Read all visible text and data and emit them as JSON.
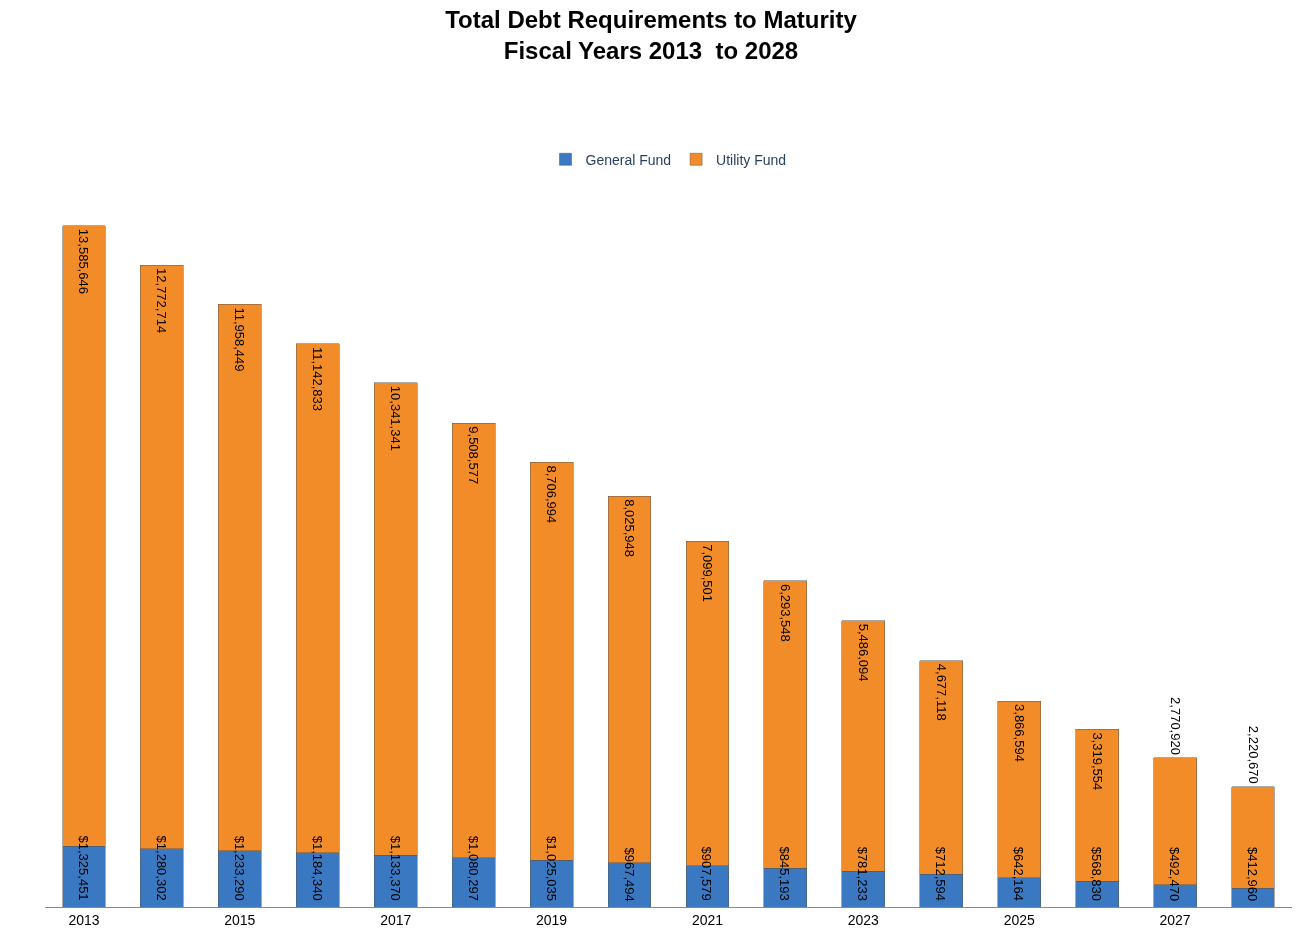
{
  "chart_data": {
    "type": "bar",
    "stacked": true,
    "title": "Total Debt Requirements to Maturity\nFiscal Years 2013  to 2028",
    "categories": [
      "2013",
      null,
      "2015",
      null,
      "2017",
      null,
      "2019",
      null,
      "2021",
      null,
      "2023",
      null,
      "2025",
      null,
      "2027",
      null
    ],
    "series": [
      {
        "name": "General Fund",
        "color": "#3a78c2",
        "values": [
          1325451,
          1280302,
          1233290,
          1184340,
          1133370,
          1080297,
          1025035,
          967494,
          907579,
          845193,
          781233,
          712594,
          642164,
          568830,
          492470,
          412960
        ],
        "value_labels": [
          "$1,325,451",
          "$1,280,302",
          "$1,233,290",
          "$1,184,340",
          "$1,133,370",
          "$1,080,297",
          "$1,025,035",
          "$967,494",
          "$907,579",
          "$845,193",
          "$781,233",
          "$712,594",
          "$642,164",
          "$568,830",
          "$492,470",
          "$412,960"
        ]
      },
      {
        "name": "Utility Fund",
        "color": "#f28c28",
        "values": [
          13585646,
          12772714,
          11958449,
          11142833,
          10341341,
          9508577,
          8706994,
          8025948,
          7099501,
          6293548,
          5486094,
          4677118,
          3866594,
          3319554,
          2770920,
          2220670
        ],
        "value_labels": [
          "13,585,646",
          "12,772,714",
          "11,958,449",
          "11,142,833",
          "10,341,341",
          "9,508,577",
          "8,706,994",
          "8,025,948",
          "7,099,501",
          "6,293,548",
          "5,486,094",
          "4,677,118",
          "3,866,594",
          "3,319,554",
          "2,770,920",
          "2,220,670"
        ]
      }
    ],
    "legend": "top"
  }
}
